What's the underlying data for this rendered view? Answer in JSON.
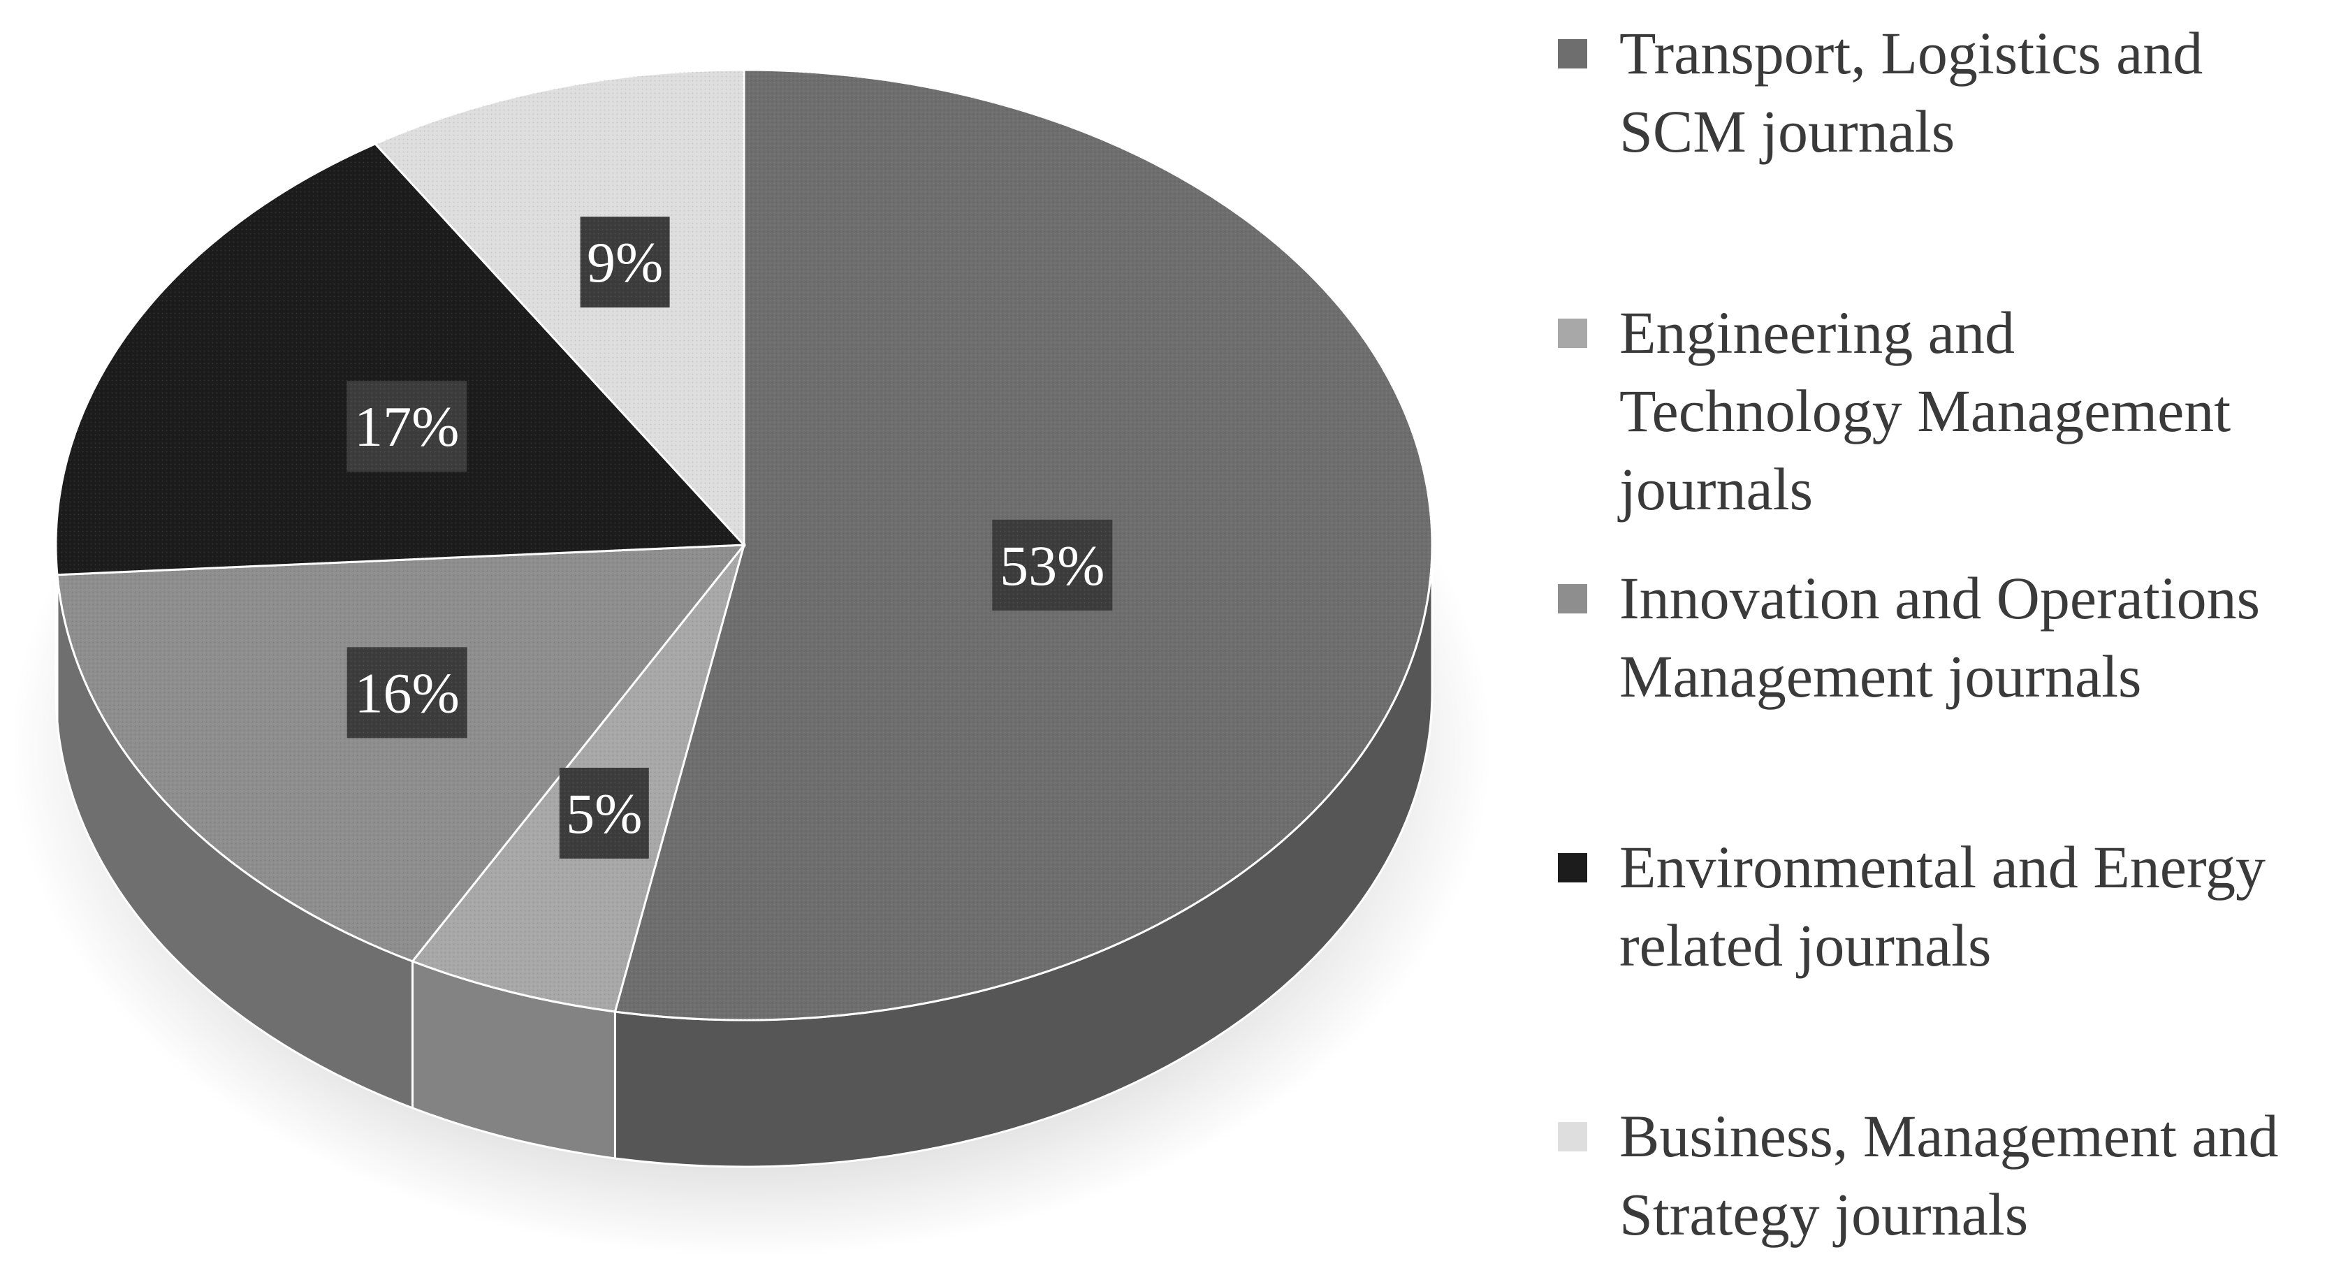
{
  "chart_data": {
    "type": "pie",
    "categories": [
      "Transport, Logistics and SCM journals",
      "Engineering and Technology Management journals",
      "Innovation and Operations Management journals",
      "Environmental and Energy related journals",
      "Business, Management and Strategy journals"
    ],
    "values": [
      53,
      5,
      16,
      17,
      9
    ],
    "data_labels": [
      "53%",
      "5%",
      "16%",
      "17%",
      "9%"
    ],
    "colors": [
      "#6e6e6e",
      "#a8a8a8",
      "#8e8e8e",
      "#1c1c1c",
      "#dedede"
    ],
    "label_box_color": "#3c3c3c",
    "legend_position": "right",
    "three_d": true
  },
  "legend": {
    "items": [
      {
        "lines": [
          "Transport, Logistics and",
          "SCM journals"
        ],
        "color": "#6e6e6e"
      },
      {
        "lines": [
          "Engineering and",
          "Technology Management",
          "journals"
        ],
        "color": "#a8a8a8"
      },
      {
        "lines": [
          "Innovation and Operations",
          "Management journals"
        ],
        "color": "#8e8e8e"
      },
      {
        "lines": [
          "Environmental and Energy",
          "related journals"
        ],
        "color": "#1c1c1c"
      },
      {
        "lines": [
          "Business, Management and",
          "Strategy journals"
        ],
        "color": "#dedede"
      }
    ]
  }
}
